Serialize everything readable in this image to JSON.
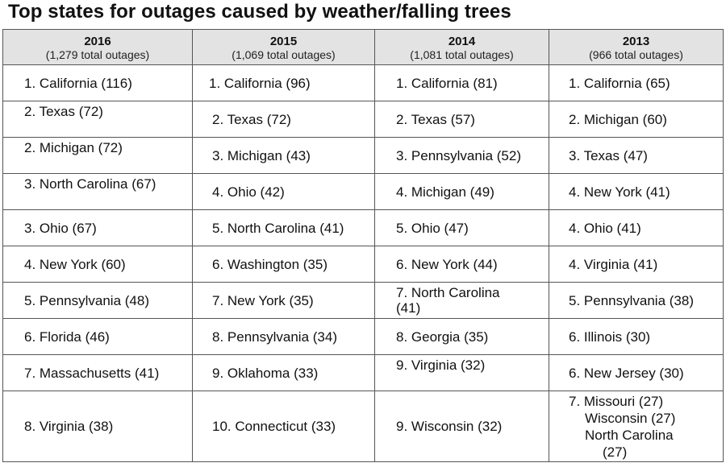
{
  "title": "Top states for outages caused by weather/falling trees",
  "columns": [
    {
      "year": "2016",
      "total": "(1,279 total outages)"
    },
    {
      "year": "2015",
      "total": "(1,069 total outages)"
    },
    {
      "year": "2014",
      "total": "(1,081 total outages)"
    },
    {
      "year": "2013",
      "total": "(966 total outages)"
    }
  ],
  "rows": [
    [
      "1.   California (116)",
      "1. California (96)",
      "1. California (81)",
      "1. California (65)"
    ],
    [
      "2.   Texas (72)",
      "2. Texas (72)",
      "2. Texas (57)",
      "2. Michigan (60)"
    ],
    [
      "2.   Michigan (72)",
      "3. Michigan (43)",
      "3. Pennsylvania (52)",
      "3. Texas (47)"
    ],
    [
      "3.  North Carolina (67)",
      "4. Ohio (42)",
      "4. Michigan (49)",
      "4. New York (41)"
    ],
    [
      "3.   Ohio (67)",
      "5. North Carolina (41)",
      "5. Ohio (47)",
      "4. Ohio (41)"
    ],
    [
      "4.   New York (60)",
      "6. Washington (35)",
      "6. New York (44)",
      "4. Virginia (41)"
    ],
    [
      "5.  Pennsylvania (48)",
      "7. New York (35)",
      "7. North Carolina (41)",
      "5. Pennsylvania (38)"
    ],
    [
      "6.  Florida (46)",
      "8. Pennsylvania (34)",
      "8. Georgia (35)",
      "6. Illinois (30)"
    ],
    [
      "7.  Massachusetts (41)",
      "9. Oklahoma (33)",
      "9. Virginia (32)",
      "6. New Jersey (30)"
    ],
    [
      "8.  Virginia (38)",
      "10. Connecticut (33)",
      "9. Wisconsin (32)",
      "7. Missouri (27)"
    ]
  ],
  "last_cell_extra": [
    "Wisconsin (27)",
    "North Carolina",
    "(27)"
  ]
}
